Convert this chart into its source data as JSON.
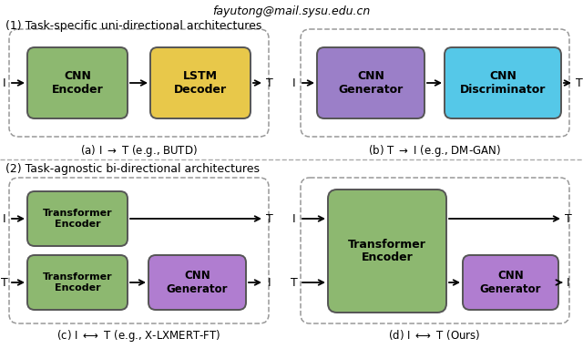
{
  "email": "fayutong@mail.sysu.edu.cn",
  "section1_title": "(1) Task-specific uni-directional architectures",
  "section2_title": "(2) Task-agnostic bi-directional architectures",
  "fig_bg": "#ffffff",
  "colors": {
    "green": "#8db870",
    "yellow": "#e8c84a",
    "purple": "#9b7fc8",
    "cyan": "#55c8e8",
    "purple2": "#b07dd0"
  }
}
